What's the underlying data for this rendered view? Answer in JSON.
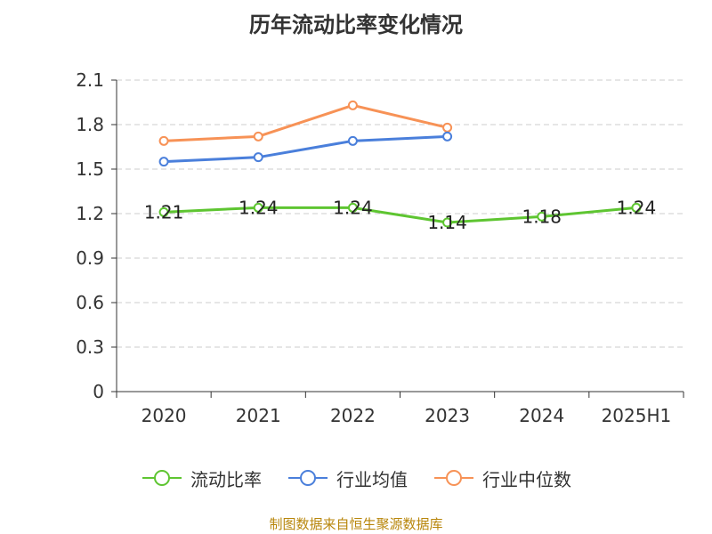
{
  "title": "历年流动比率变化情况",
  "source": "制图数据来自恒生聚源数据库",
  "colors": {
    "流动比率": "#5ec531",
    "行业均值": "#4a7fdb",
    "行业中位数": "#f79256",
    "grid": "#cccccc",
    "axis": "#333333"
  },
  "chart_data": {
    "type": "line",
    "title": "历年流动比率变化情况",
    "categories": [
      "2020",
      "2021",
      "2022",
      "2023",
      "2024",
      "2025H1"
    ],
    "ylim": [
      0,
      2.1
    ],
    "yticks": [
      "0",
      "0.3",
      "0.6",
      "0.9",
      "1.2",
      "1.5",
      "1.8",
      "2.1"
    ],
    "grid": true,
    "legend_position": "bottom",
    "series": [
      {
        "name": "流动比率",
        "values": [
          1.21,
          1.24,
          1.24,
          1.14,
          1.18,
          1.24
        ],
        "labels": [
          "1.21",
          "1.24",
          "1.24",
          "1.14",
          "1.18",
          "1.24"
        ]
      },
      {
        "name": "行业均值",
        "values": [
          1.55,
          1.58,
          1.69,
          1.72,
          null,
          null
        ]
      },
      {
        "name": "行业中位数",
        "values": [
          1.69,
          1.72,
          1.93,
          1.78,
          null,
          null
        ]
      }
    ]
  }
}
